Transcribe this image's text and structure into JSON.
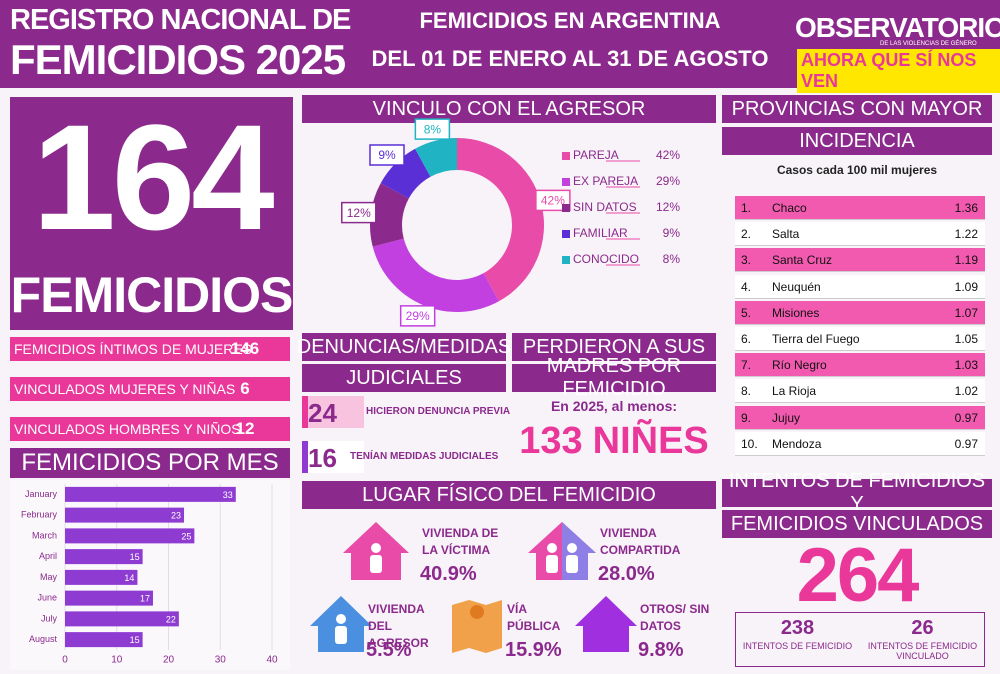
{
  "header": {
    "title_line1": "REGISTRO NACIONAL DE",
    "title_line2": "FEMICIDIOS 2025",
    "subtitle_line1": "FEMICIDIOS EN ARGENTINA",
    "subtitle_line2": "DEL 01 DE ENERO AL 31 DE AGOSTO",
    "logo_line1": "OBSERVATORIO",
    "logo_small": "DE LAS VIOLENCIAS DE GÉNERO",
    "logo_line2": "AHORA QUE SÍ NOS VEN"
  },
  "total": {
    "value": 164,
    "label": "FEMICIDIOS"
  },
  "breakdown": [
    {
      "label": "FEMICIDIOS ÍNTIMOS DE MUJERES",
      "value": 146
    },
    {
      "label": "VINCULADOS MUJERES Y NIÑAS",
      "value": 6
    },
    {
      "label": "VINCULADOS HOMBRES Y NIÑOS",
      "value": 12
    }
  ],
  "denuncias": {
    "title_line1": "DENUNCIAS/MEDIDAS",
    "title_line2": "JUDICIALES",
    "items": [
      {
        "value": 24,
        "label": "HICIERON DENUNCIA PREVIA"
      },
      {
        "value": 16,
        "label": "TENÍAN MEDIDAS JUDICIALES"
      }
    ]
  },
  "madres": {
    "title_line1": "PERDIERON A SUS",
    "title_line2": "MADRES POR FEMICIDIO",
    "note": "En 2025, al menos:",
    "value": 133,
    "unit": "NIÑES"
  },
  "lugar": {
    "title": "LUGAR FÍSICO DEL FEMICIDIO",
    "items": [
      {
        "label": "VIVIENDA DE LA VÍCTIMA",
        "pct": "40.9%"
      },
      {
        "label": "VIVIENDA COMPARTIDA",
        "pct": "28.0%"
      },
      {
        "label": "VIVIENDA DEL AGRESOR",
        "pct": "5.5%"
      },
      {
        "label": "VÍA PÚBLICA",
        "pct": "15.9%"
      },
      {
        "label": "OTROS/ SIN DATOS",
        "pct": "9.8%"
      }
    ]
  },
  "provincias": {
    "title_line1": "PROVINCIAS CON MAYOR",
    "title_line2": "INCIDENCIA",
    "subtitle": "Casos cada 100 mil mujeres",
    "rows": [
      [
        "1.",
        "Chaco",
        1.36
      ],
      [
        "2.",
        "Salta",
        1.22
      ],
      [
        "3.",
        "Santa Cruz",
        1.19
      ],
      [
        "4.",
        "Neuquén",
        1.09
      ],
      [
        "5.",
        "Misiones",
        1.07
      ],
      [
        "6.",
        "Tierra del Fuego",
        1.05
      ],
      [
        "7.",
        "Río Negro",
        1.03
      ],
      [
        "8.",
        "La Rioja",
        1.02
      ],
      [
        "9.",
        "Jujuy",
        0.97
      ],
      [
        "10.",
        "Mendoza",
        0.97
      ]
    ]
  },
  "intentos": {
    "title_line1": "INTENTOS DE FEMICIDIOS Y",
    "title_line2": "FEMICIDIOS VINCULADOS",
    "total": 264,
    "items": [
      {
        "value": 238,
        "label": "INTENTOS DE FEMICIDIO"
      },
      {
        "value": 26,
        "label": "INTENTOS DE FEMICIDIO VINCULADO"
      }
    ]
  },
  "chart_data": [
    {
      "type": "donut",
      "title": "VINCULO CON EL AGRESOR",
      "categories": [
        "PAREJA",
        "EX PAREJA",
        "SIN DATOS",
        "FAMILIAR",
        "CONOCIDO"
      ],
      "values": [
        42,
        29,
        12,
        9,
        8
      ],
      "value_labels": [
        "42%",
        "29%",
        "12%",
        "9%",
        "8%"
      ],
      "colors": [
        "#e84ba8",
        "#c23fe0",
        "#8b2a8c",
        "#5a2fd6",
        "#1fb3c4"
      ]
    },
    {
      "type": "hbar",
      "title": "FEMICIDIOS POR MES",
      "categories": [
        "January",
        "February",
        "March",
        "April",
        "May",
        "June",
        "July",
        "August"
      ],
      "values": [
        33,
        23,
        25,
        15,
        14,
        17,
        22,
        15
      ],
      "color": "#8e3bd2",
      "xlim": [
        0,
        40
      ],
      "xticks": [
        0,
        10,
        20,
        30,
        40
      ],
      "grid": true
    }
  ]
}
